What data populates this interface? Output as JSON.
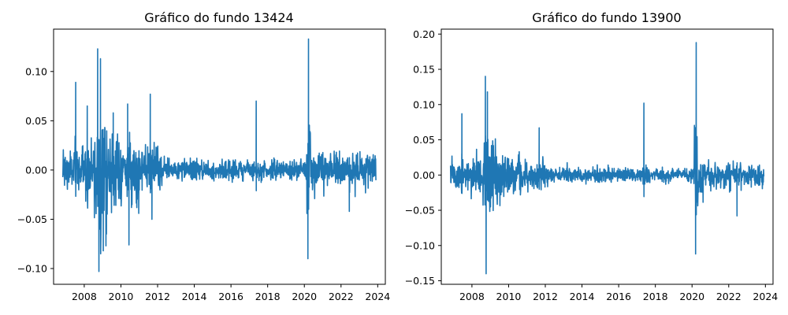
{
  "chart_data": [
    {
      "type": "line",
      "title": "Gráfico do fundo 13424",
      "xlabel": "",
      "ylabel": "",
      "x_range": [
        "2006-11-01",
        "2023-11-30"
      ],
      "xlim": [
        "2006-05-01",
        "2024-06-01"
      ],
      "ylim": [
        -0.116,
        0.143
      ],
      "x_ticks": [
        "2008",
        "2010",
        "2012",
        "2014",
        "2016",
        "2018",
        "2020",
        "2022",
        "2024"
      ],
      "y_ticks": [
        -0.1,
        -0.05,
        0.0,
        0.05,
        0.1
      ],
      "y_tick_labels": [
        "−0.10",
        "−0.05",
        "0.00",
        "0.05",
        "0.10"
      ],
      "grid": false,
      "color": "#1f77b4",
      "series": [
        {
          "name": "",
          "notable_points": [
            {
              "x": "2007-07-15",
              "y": 0.089
            },
            {
              "x": "2008-03-01",
              "y": 0.065
            },
            {
              "x": "2008-09-25",
              "y": 0.123
            },
            {
              "x": "2008-10-20",
              "y": -0.103
            },
            {
              "x": "2008-11-20",
              "y": 0.113
            },
            {
              "x": "2009-01-15",
              "y": -0.082
            },
            {
              "x": "2009-08-01",
              "y": 0.058
            },
            {
              "x": "2010-05-15",
              "y": 0.067
            },
            {
              "x": "2010-06-10",
              "y": -0.076
            },
            {
              "x": "2011-08-08",
              "y": 0.077
            },
            {
              "x": "2011-09-10",
              "y": -0.05
            },
            {
              "x": "2017-05-18",
              "y": 0.07
            },
            {
              "x": "2020-03-12",
              "y": -0.09
            },
            {
              "x": "2020-03-24",
              "y": 0.133
            },
            {
              "x": "2022-06-15",
              "y": -0.042
            }
          ]
        }
      ]
    },
    {
      "type": "line",
      "title": "Gráfico do fundo 13900",
      "xlabel": "",
      "ylabel": "",
      "x_range": [
        "2006-11-01",
        "2023-11-30"
      ],
      "xlim": [
        "2006-05-01",
        "2024-06-01"
      ],
      "ylim": [
        -0.155,
        0.207
      ],
      "x_ticks": [
        "2008",
        "2010",
        "2012",
        "2014",
        "2016",
        "2018",
        "2020",
        "2022",
        "2024"
      ],
      "y_ticks": [
        -0.15,
        -0.1,
        -0.05,
        0.0,
        0.05,
        0.1,
        0.15,
        0.2
      ],
      "y_tick_labels": [
        "−0.15",
        "−0.10",
        "−0.05",
        "0.00",
        "0.05",
        "0.10",
        "0.15",
        "0.20"
      ],
      "grid": false,
      "color": "#1f77b4",
      "series": [
        {
          "name": "",
          "notable_points": [
            {
              "x": "2007-06-15",
              "y": 0.087
            },
            {
              "x": "2008-09-25",
              "y": 0.14
            },
            {
              "x": "2008-10-10",
              "y": -0.14
            },
            {
              "x": "2008-11-05",
              "y": 0.118
            },
            {
              "x": "2011-09-01",
              "y": 0.067
            },
            {
              "x": "2017-05-18",
              "y": 0.102
            },
            {
              "x": "2020-03-12",
              "y": -0.112
            },
            {
              "x": "2020-03-24",
              "y": 0.188
            },
            {
              "x": "2022-06-15",
              "y": -0.058
            }
          ]
        }
      ]
    }
  ]
}
